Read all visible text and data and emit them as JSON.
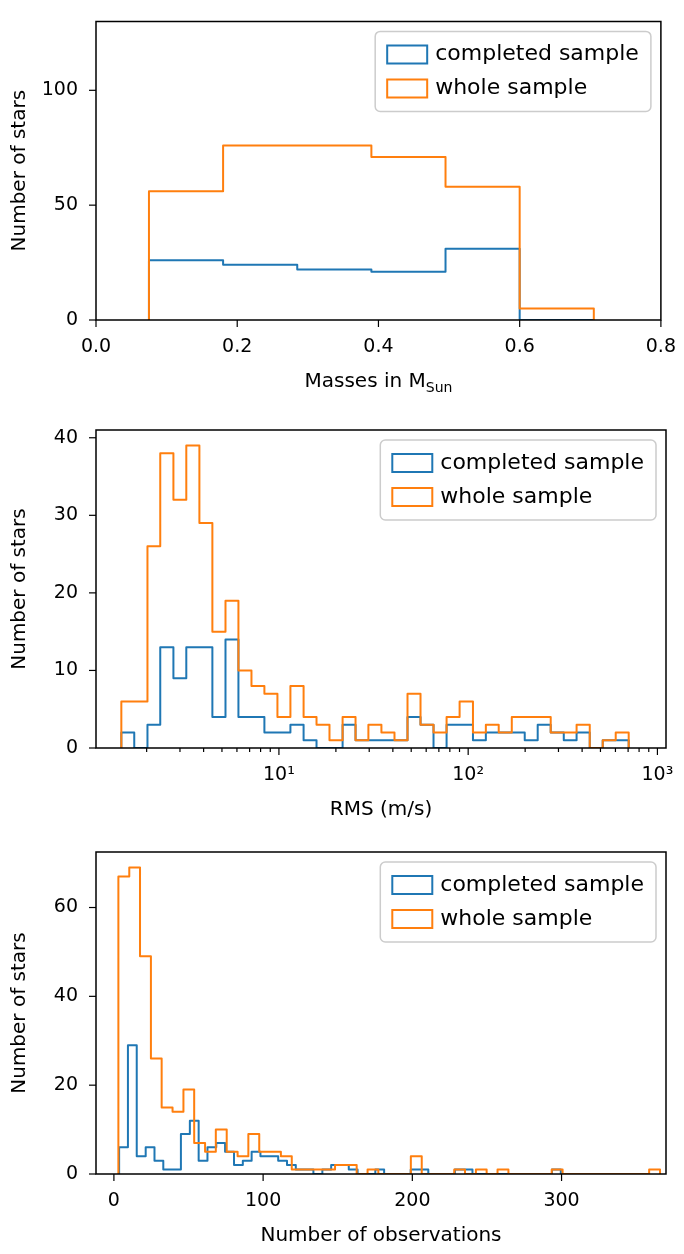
{
  "chart_data": [
    {
      "type": "histogram",
      "xlabel": "Masses in M$_{Sun}$",
      "ylabel": "Number of stars",
      "legend": "top right",
      "bins": [
        0.075,
        0.18,
        0.285,
        0.39,
        0.495,
        0.6,
        0.705
      ],
      "xlim": [
        0,
        0.8
      ],
      "xticks": [
        {
          "value": 0,
          "label": "0.0"
        },
        0.2,
        0.4,
        0.6,
        0.8
      ],
      "ylim": [
        0,
        130
      ],
      "yticks": [
        0,
        50,
        100
      ],
      "series": [
        {
          "name": "completed sample",
          "color": "#1f77b4",
          "values": [
            26,
            24,
            22,
            21,
            31,
            0
          ]
        },
        {
          "name": "whole sample",
          "color": "#ff7f0e",
          "values": [
            56,
            76,
            76,
            71,
            58,
            5
          ]
        }
      ]
    },
    {
      "type": "histogram",
      "xlabel": "RMS (m/s)",
      "ylabel": "Number of stars",
      "legend": "top right",
      "log": "x",
      "bins": [
        1.47,
        1.72,
        2.02,
        2.36,
        2.77,
        3.24,
        3.8,
        4.45,
        5.22,
        6.11,
        7.16,
        8.38,
        9.82,
        11.5,
        13.5,
        15.8,
        18.5,
        21.7,
        25.4,
        29.7,
        34.8,
        40.8,
        47.8,
        56,
        65.6,
        76.9,
        90.1,
        106,
        124,
        145,
        170,
        199,
        233,
        273,
        320,
        374,
        439,
        514,
        602,
        705
      ],
      "xlim": [
        1.08,
        1110
      ],
      "xticks": [
        {
          "value": 2,
          "label": null
        },
        {
          "value": 3,
          "label": null
        },
        {
          "value": 4,
          "label": null
        },
        {
          "value": 5,
          "label": null
        },
        {
          "value": 6,
          "label": null
        },
        {
          "value": 7,
          "label": null
        },
        {
          "value": 8,
          "label": null
        },
        {
          "value": 9,
          "label": null
        },
        {
          "value": 10,
          "label": "10¹"
        },
        {
          "value": 20,
          "label": null
        },
        {
          "value": 30,
          "label": null
        },
        {
          "value": 40,
          "label": null
        },
        {
          "value": 50,
          "label": null
        },
        {
          "value": 60,
          "label": null
        },
        {
          "value": 70,
          "label": null
        },
        {
          "value": 80,
          "label": null
        },
        {
          "value": 90,
          "label": null
        },
        {
          "value": 100,
          "label": "10²"
        },
        {
          "value": 200,
          "label": null
        },
        {
          "value": 300,
          "label": null
        },
        {
          "value": 400,
          "label": null
        },
        {
          "value": 500,
          "label": null
        },
        {
          "value": 600,
          "label": null
        },
        {
          "value": 700,
          "label": null
        },
        {
          "value": 800,
          "label": null
        },
        {
          "value": 900,
          "label": null
        },
        {
          "value": 1000,
          "label": "10³"
        }
      ],
      "ylim": [
        0,
        41
      ],
      "yticks": [
        0,
        10,
        20,
        30,
        40
      ],
      "series": [
        {
          "name": "completed sample",
          "color": "#1f77b4",
          "values": [
            2,
            0,
            3,
            13,
            9,
            13,
            13,
            4,
            14,
            4,
            4,
            2,
            2,
            3,
            1,
            0,
            0,
            3,
            1,
            1,
            1,
            1,
            4,
            3,
            0,
            3,
            3,
            1,
            2,
            2,
            2,
            1,
            3,
            2,
            1,
            2,
            0,
            1,
            1
          ]
        },
        {
          "name": "whole sample",
          "color": "#ff7f0e",
          "values": [
            6,
            6,
            26,
            38,
            32,
            39,
            29,
            15,
            19,
            10,
            8,
            7,
            4,
            8,
            4,
            3,
            1,
            4,
            1,
            3,
            2,
            1,
            7,
            3,
            2,
            4,
            6,
            2,
            3,
            2,
            4,
            4,
            4,
            2,
            2,
            3,
            0,
            1,
            2
          ]
        }
      ]
    },
    {
      "type": "histogram",
      "xlabel": "Number of observations",
      "ylabel": "Number of stars",
      "legend": "top right",
      "bins": [
        3,
        10.3,
        17.5,
        24.8,
        32,
        39.3,
        46.6,
        53.8,
        61.1,
        68.3,
        75.6,
        82.9,
        90.1,
        97.4,
        104.6,
        111.9,
        119.2,
        126.4,
        133.7,
        140.9,
        148.2,
        155.5,
        162.7,
        170,
        177.2,
        184.5,
        191.8,
        199,
        206.3,
        213.5,
        220.8,
        228.1,
        235.3,
        242.6,
        249.8,
        257.1,
        264.4,
        271.6,
        278.9,
        286.1,
        293.4,
        300.7,
        307.9,
        315.2,
        322.4,
        329.7,
        337,
        344.2,
        351.5,
        358.7,
        366
      ],
      "xlim": [
        -12,
        370
      ],
      "xticks": [
        0,
        100,
        200,
        300
      ],
      "ylim": [
        0,
        72.5
      ],
      "yticks": [
        0,
        20,
        40,
        60
      ],
      "series": [
        {
          "name": "completed sample",
          "color": "#1f77b4",
          "bins": [
            3.5,
            9.4,
            15.3,
            21.3,
            27.2,
            33.1,
            39,
            44.9,
            50.9,
            56.8,
            62.7,
            68.6,
            74.5,
            80.5,
            86.4,
            92.3,
            98.2,
            104.1,
            110.1,
            116,
            121.9,
            127.8,
            133.7,
            139.7,
            145.6,
            151.5,
            157.4,
            163.3,
            169.3,
            175.2,
            181.1,
            187,
            192.9,
            198.9,
            204.8,
            210.7,
            216.6,
            222.5,
            228.5,
            234.4,
            240.3,
            246.2,
            252.1,
            258.1,
            264,
            269.9,
            275.8,
            281.7,
            287.7,
            293.6,
            299.5
          ],
          "values": [
            6,
            29,
            4,
            6,
            3,
            1,
            1,
            9,
            12,
            3,
            6,
            7,
            5,
            2,
            3,
            5,
            4,
            4,
            3,
            2,
            1,
            1,
            0,
            1,
            2,
            2,
            1,
            0,
            0,
            1,
            0,
            0,
            0,
            1,
            1,
            0,
            0,
            0,
            1,
            1,
            0,
            0,
            0,
            0,
            0,
            0,
            0,
            0,
            0,
            1
          ]
        },
        {
          "name": "whole sample",
          "color": "#ff7f0e",
          "values": [
            67,
            69,
            49,
            26,
            15,
            14,
            19,
            7,
            5,
            10,
            5,
            4,
            9,
            5,
            5,
            4,
            1,
            1,
            1,
            1,
            2,
            2,
            0,
            1,
            0,
            0,
            0,
            4,
            0,
            0,
            0,
            1,
            0,
            1,
            0,
            1,
            0,
            0,
            0,
            0,
            1,
            0,
            0,
            0,
            0,
            0,
            0,
            0,
            0,
            1
          ]
        }
      ]
    }
  ]
}
